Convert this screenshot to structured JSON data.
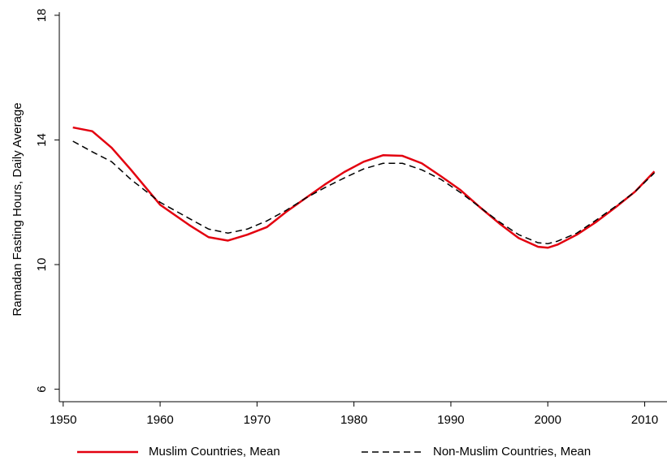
{
  "chart_data": {
    "type": "line",
    "y_label": "Ramadan Fasting Hours, Daily Average",
    "x": [
      1951,
      1953,
      1955,
      1957,
      1960,
      1963,
      1965,
      1967,
      1969,
      1971,
      1973,
      1975,
      1977,
      1979,
      1981,
      1983,
      1985,
      1987,
      1989,
      1991,
      1993,
      1995,
      1997,
      1999,
      2000,
      2001,
      2003,
      2005,
      2007,
      2009,
      2011
    ],
    "series": [
      {
        "name": "Muslim Countries, Mean",
        "color": "#e3000f",
        "line_style": "solid",
        "values": [
          14.4,
          14.28,
          13.75,
          13.04,
          11.92,
          11.27,
          10.88,
          10.77,
          10.96,
          11.2,
          11.69,
          12.13,
          12.57,
          12.97,
          13.3,
          13.51,
          13.49,
          13.25,
          12.83,
          12.39,
          11.84,
          11.32,
          10.85,
          10.57,
          10.54,
          10.64,
          10.96,
          11.37,
          11.84,
          12.34,
          12.99
        ]
      },
      {
        "name": "Non-Muslim Countries, Mean",
        "color": "#000000",
        "line_style": "dashed",
        "values": [
          13.96,
          13.62,
          13.3,
          12.73,
          12.0,
          11.48,
          11.14,
          11.01,
          11.14,
          11.4,
          11.74,
          12.13,
          12.47,
          12.78,
          13.07,
          13.25,
          13.25,
          13.04,
          12.73,
          12.31,
          11.84,
          11.37,
          10.96,
          10.7,
          10.67,
          10.75,
          11.01,
          11.43,
          11.87,
          12.34,
          12.94
        ]
      }
    ],
    "xlim": [
      1949.6,
      2012.3
    ],
    "xticks": [
      1950,
      1960,
      1970,
      1980,
      1990,
      2000,
      2010
    ],
    "ylim": [
      5.6,
      18.1
    ],
    "yticks": [
      6,
      10,
      14,
      18
    ],
    "grid": false,
    "legend": "bottom"
  }
}
